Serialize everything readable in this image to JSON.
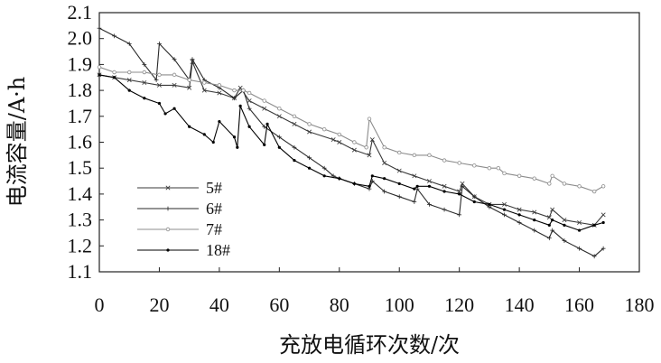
{
  "chart_data": {
    "type": "line",
    "xlabel": "充放电循环次数/次",
    "ylabel": "电流容量/A·h",
    "xlim": [
      0,
      180
    ],
    "ylim": [
      1.1,
      2.1
    ],
    "xticks": [
      "0",
      "20",
      "40",
      "60",
      "80",
      "100",
      "120",
      "140",
      "160",
      "180"
    ],
    "yticks": [
      "1.1",
      "1.2",
      "1.3",
      "1.4",
      "1.5",
      "1.6",
      "1.7",
      "1.8",
      "1.9",
      "2.0",
      "2.1"
    ],
    "grid": false,
    "legend_position": "lower-left",
    "series": [
      {
        "name": "5#",
        "color": "#3a3a3a",
        "marker": "x",
        "x": [
          0,
          5,
          10,
          15,
          20,
          25,
          30,
          31,
          35,
          40,
          45,
          47,
          50,
          55,
          60,
          65,
          70,
          78,
          80,
          85,
          90,
          91,
          95,
          100,
          105,
          110,
          115,
          120,
          121,
          125,
          130,
          135,
          140,
          145,
          150,
          151,
          155,
          160,
          165,
          168
        ],
        "values": [
          1.86,
          1.85,
          1.84,
          1.83,
          1.82,
          1.82,
          1.81,
          1.91,
          1.8,
          1.79,
          1.77,
          1.81,
          1.76,
          1.73,
          1.7,
          1.67,
          1.64,
          1.61,
          1.6,
          1.57,
          1.55,
          1.61,
          1.52,
          1.49,
          1.47,
          1.45,
          1.43,
          1.41,
          1.44,
          1.39,
          1.36,
          1.36,
          1.34,
          1.33,
          1.31,
          1.34,
          1.3,
          1.29,
          1.28,
          1.32
        ]
      },
      {
        "name": "6#",
        "color": "#2a2a2a",
        "marker": "+",
        "x": [
          0,
          5,
          10,
          15,
          19,
          20,
          25,
          30,
          31,
          35,
          40,
          45,
          48,
          50,
          55,
          60,
          65,
          70,
          75,
          78,
          80,
          85,
          90,
          91,
          95,
          100,
          105,
          106,
          110,
          115,
          120,
          121,
          125,
          130,
          135,
          140,
          145,
          150,
          151,
          155,
          160,
          165,
          168
        ],
        "values": [
          2.04,
          2.01,
          1.98,
          1.9,
          1.84,
          1.98,
          1.92,
          1.84,
          1.92,
          1.84,
          1.81,
          1.77,
          1.8,
          1.73,
          1.66,
          1.62,
          1.58,
          1.54,
          1.5,
          1.47,
          1.46,
          1.44,
          1.42,
          1.45,
          1.41,
          1.39,
          1.37,
          1.42,
          1.36,
          1.34,
          1.32,
          1.43,
          1.39,
          1.35,
          1.32,
          1.29,
          1.26,
          1.23,
          1.26,
          1.22,
          1.19,
          1.16,
          1.19
        ]
      },
      {
        "name": "7#",
        "color": "#8c8c8c",
        "marker": "o",
        "x": [
          0,
          5,
          10,
          15,
          20,
          25,
          30,
          35,
          40,
          45,
          48,
          50,
          55,
          60,
          65,
          70,
          75,
          80,
          85,
          89,
          90,
          95,
          100,
          105,
          110,
          115,
          120,
          125,
          130,
          133,
          135,
          140,
          145,
          150,
          151,
          155,
          160,
          165,
          168
        ],
        "values": [
          1.89,
          1.87,
          1.87,
          1.87,
          1.86,
          1.86,
          1.84,
          1.83,
          1.82,
          1.8,
          1.8,
          1.79,
          1.76,
          1.73,
          1.7,
          1.67,
          1.65,
          1.63,
          1.6,
          1.58,
          1.69,
          1.58,
          1.56,
          1.55,
          1.55,
          1.53,
          1.52,
          1.51,
          1.5,
          1.5,
          1.48,
          1.47,
          1.46,
          1.44,
          1.47,
          1.44,
          1.43,
          1.41,
          1.43
        ]
      },
      {
        "name": "18#",
        "color": "#000000",
        "marker": "dot",
        "x": [
          0,
          5,
          10,
          15,
          20,
          22,
          25,
          30,
          35,
          38,
          40,
          45,
          46,
          47,
          50,
          55,
          56,
          60,
          65,
          70,
          75,
          80,
          85,
          90,
          91,
          95,
          100,
          105,
          106,
          110,
          115,
          120,
          125,
          130,
          135,
          140,
          145,
          150,
          151,
          155,
          160,
          165,
          168
        ],
        "values": [
          1.86,
          1.85,
          1.8,
          1.77,
          1.75,
          1.71,
          1.73,
          1.66,
          1.63,
          1.6,
          1.68,
          1.62,
          1.58,
          1.74,
          1.66,
          1.59,
          1.67,
          1.58,
          1.53,
          1.5,
          1.47,
          1.46,
          1.44,
          1.43,
          1.47,
          1.46,
          1.44,
          1.42,
          1.43,
          1.43,
          1.41,
          1.4,
          1.37,
          1.36,
          1.34,
          1.32,
          1.3,
          1.28,
          1.3,
          1.28,
          1.26,
          1.28,
          1.29
        ]
      }
    ]
  }
}
